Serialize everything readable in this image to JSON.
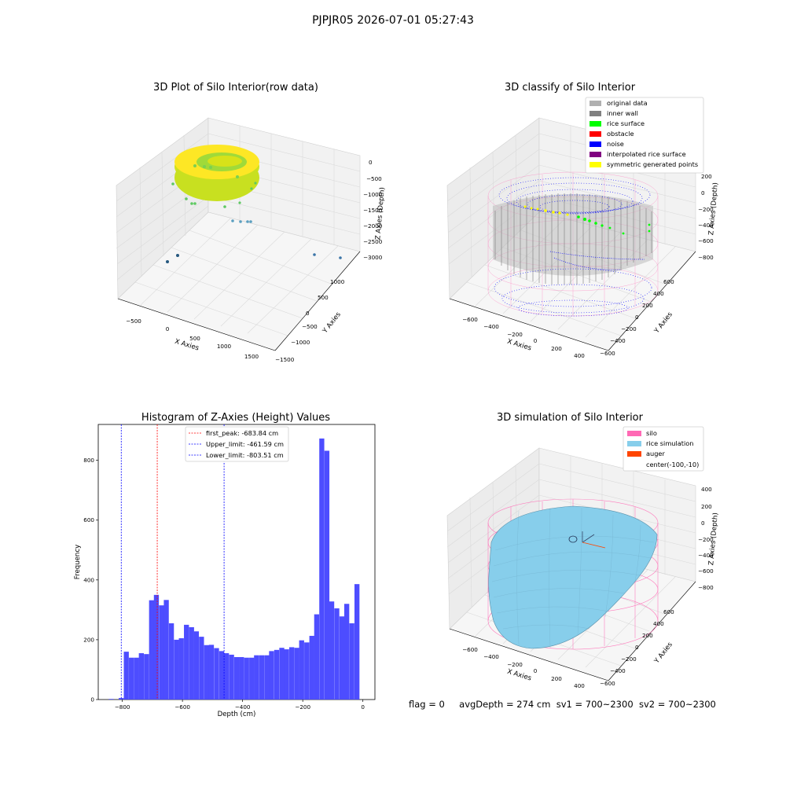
{
  "suptitle": "PJPJR05 2026-07-01 05:27:43",
  "footer": {
    "flag": "flag = 0",
    "avg_depth": "avgDepth = 274 cm",
    "sv1": "sv1 = 700~2300",
    "sv2": "sv2 = 700~2300"
  },
  "colors": {
    "histogram_bar": "#4d4dff",
    "peak_line": "#ff0000",
    "limit_line": "#0000ff",
    "silo_wire": "#ff69b4",
    "rice_sim": "#87ceeb",
    "auger": "#ff4500"
  },
  "chart_data": [
    {
      "type": "scatter",
      "projection": "3d",
      "title": "3D Plot of Silo Interior(row data)",
      "xlabel": "X Axies",
      "ylabel": "Y Axies",
      "zlabel": "Z Axies (Depth)",
      "x_ticks": [
        "−500",
        "0",
        "500",
        "1000",
        "1500"
      ],
      "y_ticks": [
        "1000",
        "500",
        "0",
        "−500",
        "−1000",
        "−1500"
      ],
      "z_ticks": [
        "0",
        "−500",
        "−1000",
        "−1500",
        "−2000",
        "−2500",
        "−3000"
      ],
      "colormap": "viridis"
    },
    {
      "type": "scatter",
      "projection": "3d",
      "title": "3D classify of Silo Interior",
      "xlabel": "X Axies",
      "ylabel": "Y Axies",
      "zlabel": "Z Axies (Depth)",
      "x_ticks": [
        "−600",
        "−400",
        "−200",
        "0",
        "200",
        "400"
      ],
      "y_ticks": [
        "600",
        "400",
        "200",
        "0",
        "−200",
        "−400",
        "−600"
      ],
      "z_ticks": [
        "200",
        "0",
        "−200",
        "−400",
        "−600",
        "−800"
      ],
      "legend": [
        {
          "label": "original data",
          "color": "#b0b0b0"
        },
        {
          "label": "inner wall",
          "color": "#808080"
        },
        {
          "label": "rice surface",
          "color": "#00ff00"
        },
        {
          "label": "obstacle",
          "color": "#ff0000"
        },
        {
          "label": "noise",
          "color": "#0000ff"
        },
        {
          "label": "interpolated rice surface",
          "color": "#800080"
        },
        {
          "label": "symmetric generated points",
          "color": "#ffff00"
        }
      ],
      "legend_position": "top-right"
    },
    {
      "type": "bar",
      "title": "Histogram of Z-Axies (Height) Values",
      "xlabel": "Depth (cm)",
      "ylabel": "Frequency",
      "xlim": [
        -880,
        40
      ],
      "ylim": [
        0,
        920
      ],
      "bin_width": 16.6,
      "bin_starts": [
        -845,
        -812,
        -795,
        -778,
        -761,
        -745,
        -728,
        -711,
        -695,
        -678,
        -662,
        -645,
        -628,
        -612,
        -595,
        -578,
        -562,
        -545,
        -528,
        -512,
        -495,
        -478,
        -462,
        -445,
        -428,
        -412,
        -395,
        -378,
        -362,
        -345,
        -328,
        -312,
        -295,
        -278,
        -262,
        -245,
        -228,
        -212,
        -195,
        -178,
        -162,
        -145,
        -128,
        -112,
        -95,
        -78,
        -62,
        -45,
        -28,
        -12
      ],
      "values": [
        2,
        5,
        160,
        140,
        140,
        155,
        152,
        332,
        350,
        315,
        333,
        255,
        200,
        205,
        250,
        242,
        228,
        210,
        182,
        183,
        172,
        162,
        155,
        150,
        142,
        142,
        140,
        140,
        148,
        148,
        148,
        162,
        166,
        173,
        168,
        175,
        173,
        198,
        191,
        213,
        285,
        873,
        832,
        328,
        305,
        278,
        320,
        255,
        386,
        0
      ],
      "x_ticks": [
        -800,
        -600,
        -400,
        -200,
        0
      ],
      "x_tick_labels": [
        "−800",
        "−600",
        "−400",
        "−200",
        "0"
      ],
      "y_ticks": [
        0,
        200,
        400,
        600,
        800
      ],
      "vlines": [
        {
          "label": "first_peak: -683.84 cm",
          "x": -683.84,
          "color": "#ff0000"
        },
        {
          "label": "Upper_limit: -461.59 cm",
          "x": -461.59,
          "color": "#0000ff"
        },
        {
          "label": "Lower_limit: -803.51 cm",
          "x": -803.51,
          "color": "#0000ff"
        }
      ],
      "legend_position": "upper center"
    },
    {
      "type": "surface",
      "projection": "3d",
      "title": "3D simulation of Silo Interior",
      "xlabel": "X Axies",
      "ylabel": "Y Axies",
      "zlabel": "Z Axies (Depth)",
      "x_ticks": [
        "−600",
        "−400",
        "−200",
        "0",
        "200",
        "400"
      ],
      "y_ticks": [
        "600",
        "400",
        "200",
        "0",
        "−200",
        "−400",
        "−600"
      ],
      "z_ticks": [
        "400",
        "200",
        "0",
        "−200",
        "−400",
        "−600",
        "−800"
      ],
      "legend": [
        {
          "label": "silo",
          "color": "#ff69b4"
        },
        {
          "label": "rice simulation",
          "color": "#87ceeb"
        },
        {
          "label": "auger",
          "color": "#ff4500"
        },
        {
          "label": "center(-100,-10)",
          "color": ""
        }
      ],
      "legend_position": "top-right"
    }
  ]
}
